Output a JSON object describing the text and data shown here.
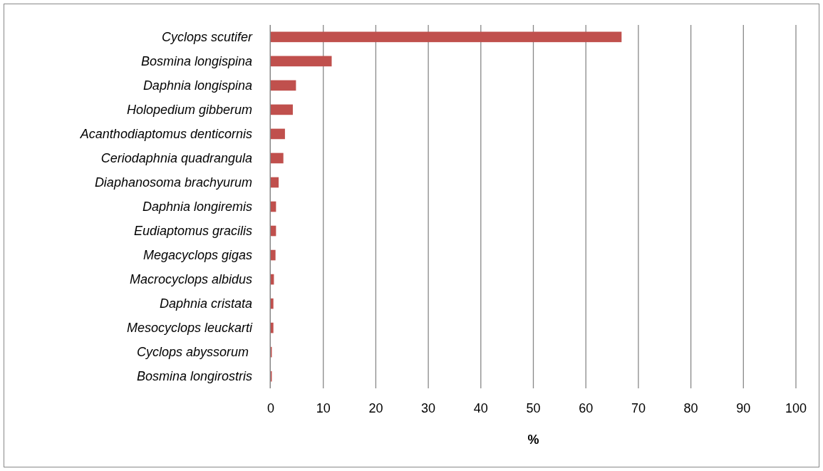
{
  "chart_data": {
    "type": "bar",
    "orientation": "horizontal",
    "xlabel": "%",
    "categories": [
      "Cyclops scutifer",
      "Bosmina longispina",
      "Daphnia longispina",
      "Holopedium gibberum",
      "Acanthodiaptomus denticornis",
      "Ceriodaphnia quadrangula",
      "Diaphanosoma brachyurum",
      "Daphnia longiremis",
      "Eudiaptomus gracilis",
      "Megacyclops gigas",
      "Macrocyclops albidus",
      "Daphnia cristata",
      "Mesocyclops leuckarti",
      "Cyclops abyssorum ",
      "Bosmina longirostris"
    ],
    "values": [
      66.8,
      11.6,
      4.8,
      4.2,
      2.7,
      2.4,
      1.5,
      1.0,
      1.0,
      0.9,
      0.6,
      0.5,
      0.5,
      0.2,
      0.2
    ],
    "color": "#c0504d",
    "xlim": [
      0,
      100
    ],
    "xticks": [
      0,
      10,
      20,
      30,
      40,
      50,
      60,
      70,
      80,
      90,
      100
    ],
    "grid": "x"
  }
}
